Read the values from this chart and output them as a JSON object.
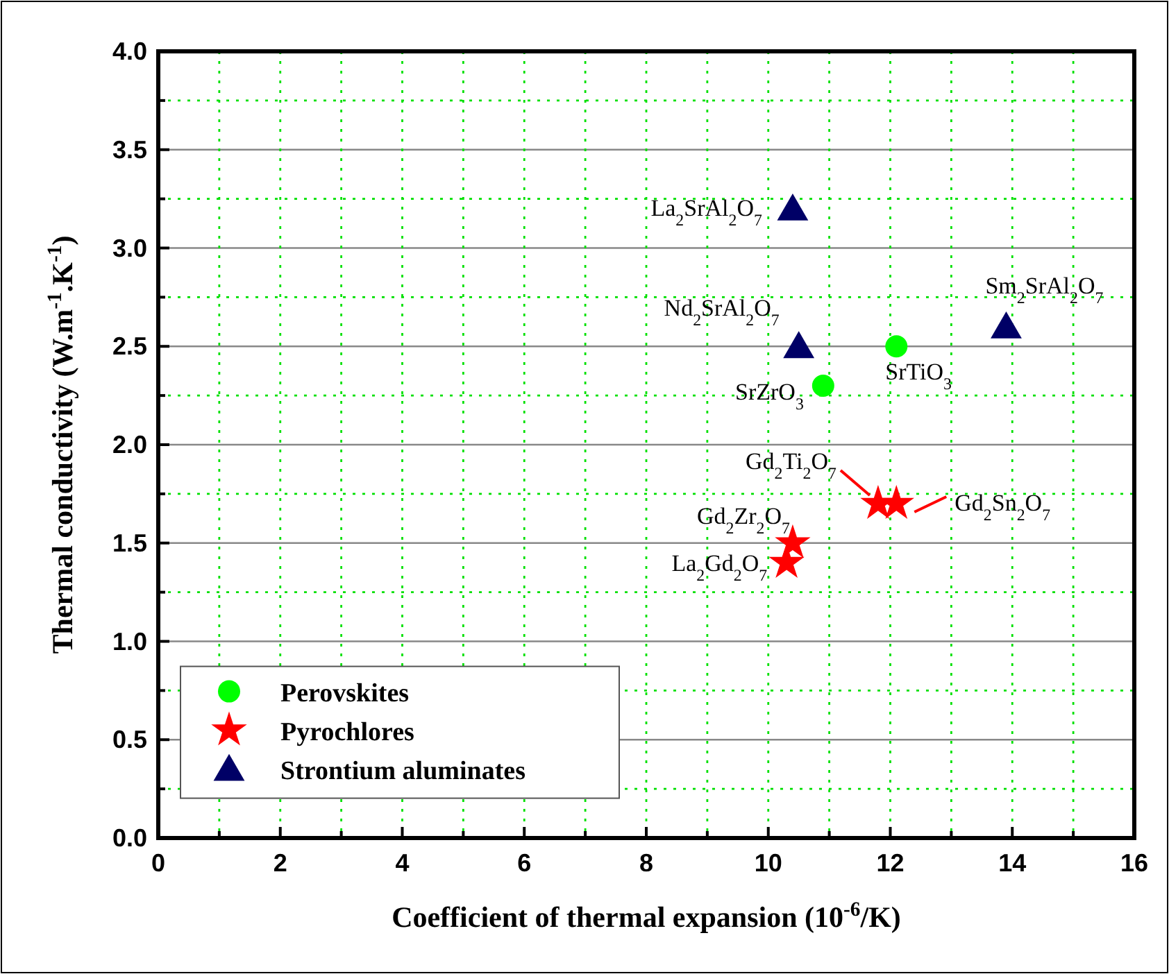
{
  "chart_data": {
    "type": "scatter",
    "xlabel": "Coefficient of thermal expansion (10$^{-6}$/K)",
    "ylabel": "Thermal conductivity (W.m$^{-1}$.K$^{-1}$)",
    "xlim": [
      0,
      16
    ],
    "ylim": [
      0,
      4
    ],
    "xticks": [
      0,
      {
        "value": 1,
        "label": null
      },
      2,
      {
        "value": 3,
        "label": null
      },
      4,
      {
        "value": 5,
        "label": null
      },
      6,
      {
        "value": 7,
        "label": null
      },
      8,
      {
        "value": 9,
        "label": null
      },
      10,
      {
        "value": 11,
        "label": null
      },
      12,
      {
        "value": 13,
        "label": null
      },
      14,
      {
        "value": 15,
        "label": null
      },
      16
    ],
    "yticks": [
      "0.0",
      {
        "value": 0.25,
        "label": null
      },
      {
        "value": 0.5,
        "label": "0.5"
      },
      {
        "value": 0.75,
        "label": null
      },
      {
        "value": 1,
        "label": "1.0"
      },
      {
        "value": 1.25,
        "label": null
      },
      {
        "value": 1.5,
        "label": "1.5"
      },
      {
        "value": 1.75,
        "label": null
      },
      {
        "value": 2,
        "label": "2.0"
      },
      {
        "value": 2.25,
        "label": null
      },
      {
        "value": 2.5,
        "label": "2.5"
      },
      {
        "value": 2.75,
        "label": null
      },
      {
        "value": 3,
        "label": "3.0"
      },
      {
        "value": 3.25,
        "label": null
      },
      {
        "value": 3.5,
        "label": "3.5"
      },
      {
        "value": 3.75,
        "label": null
      },
      {
        "value": 4,
        "label": "4.0"
      }
    ],
    "grid": true,
    "legend": "bottom left",
    "series": [
      {
        "name": "Perovskites",
        "color": "#00ff00",
        "marker": "circle",
        "x": [
          10.9,
          12.1
        ],
        "values": [
          2.3,
          2.5
        ]
      },
      {
        "name": "Pyrochlores",
        "color": "#ff0000",
        "marker": "star",
        "x": [
          11.8,
          12.1,
          10.4,
          10.3
        ],
        "values": [
          1.7,
          1.7,
          1.5,
          1.4
        ]
      },
      {
        "name": "Strontium aluminates",
        "color": "#000066",
        "marker": "triangle",
        "x": [
          10.4,
          10.5,
          13.9
        ],
        "values": [
          3.2,
          2.5,
          2.6
        ]
      }
    ],
    "annotations": [
      {
        "text": "La$_{2}$SrAl$_{2}$O$_{7}$",
        "x": 10.4,
        "y": 3.2
      },
      {
        "text": "Nd$_{2}$SrAl$_{2}$O$_{7}$",
        "x": 10.5,
        "y": 2.5
      },
      {
        "text": "Sm$_{2}$SrAl$_{2}$O$_{7}$",
        "x": 13.9,
        "y": 2.6
      },
      {
        "text": "SrTiO$_{3}$",
        "x": 12.1,
        "y": 2.5
      },
      {
        "text": "SrZrO$_{3}$",
        "x": 10.9,
        "y": 2.3
      },
      {
        "text": "Gd$_{2}$Ti$_{2}$O$_{7}$",
        "x": 11.8,
        "y": 1.7
      },
      {
        "text": "Gd$_{2}$Sn$_{2}$O$_{7}$",
        "x": 12.1,
        "y": 1.7
      },
      {
        "text": "Gd$_{2}$Zr$_{2}$O$_{7}$",
        "x": 10.4,
        "y": 1.5
      },
      {
        "text": "La$_{2}$Gd$_{2}$O$_{7}$",
        "x": 10.3,
        "y": 1.4
      }
    ]
  }
}
